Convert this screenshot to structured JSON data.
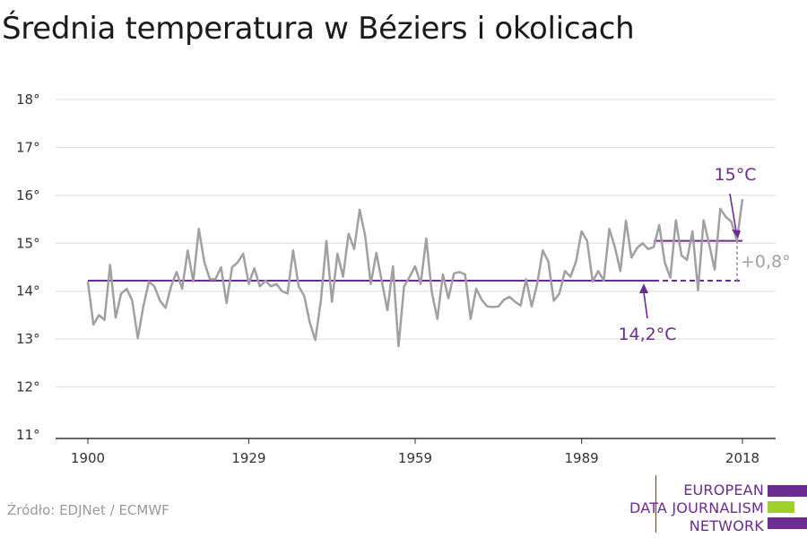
{
  "title": "Średnia temperatura w Béziers i okolicach",
  "source": "Źródło: EDJNet / ECMWF",
  "logo": {
    "lines": [
      "EUROPEAN",
      "DATA JOURNALISM",
      "NETWORK"
    ],
    "colors": [
      "#6a2c91",
      "#a0cf2d",
      "#6a2c91"
    ]
  },
  "colors": {
    "series": "#a0a0a0",
    "average": "#6a2c91",
    "grid": "#dcdcdc",
    "axis": "#333333"
  },
  "chart_data": {
    "type": "line",
    "title": "Średnia temperatura w Béziers i okolicach",
    "xlabel": "",
    "ylabel": "",
    "xlim": [
      1900,
      2018
    ],
    "ylim": [
      11,
      18
    ],
    "xticks": [
      "1900",
      "1929",
      "1959",
      "1989",
      "2018"
    ],
    "yticks": [
      "11°",
      "12°",
      "13°",
      "14°",
      "15°",
      "16°",
      "17°",
      "18°"
    ],
    "grid": true,
    "x": [
      1900,
      1901,
      1902,
      1903,
      1904,
      1905,
      1906,
      1907,
      1908,
      1909,
      1910,
      1911,
      1912,
      1913,
      1914,
      1915,
      1916,
      1917,
      1918,
      1919,
      1920,
      1921,
      1922,
      1923,
      1924,
      1925,
      1926,
      1927,
      1928,
      1929,
      1930,
      1931,
      1932,
      1933,
      1934,
      1935,
      1936,
      1937,
      1938,
      1939,
      1940,
      1941,
      1942,
      1943,
      1944,
      1945,
      1946,
      1947,
      1948,
      1949,
      1950,
      1951,
      1952,
      1953,
      1954,
      1955,
      1956,
      1957,
      1958,
      1959,
      1960,
      1961,
      1962,
      1963,
      1964,
      1965,
      1966,
      1967,
      1968,
      1969,
      1970,
      1971,
      1972,
      1973,
      1974,
      1975,
      1976,
      1977,
      1978,
      1979,
      1980,
      1981,
      1982,
      1983,
      1984,
      1985,
      1986,
      1987,
      1988,
      1989,
      1990,
      1991,
      1992,
      1993,
      1994,
      1995,
      1996,
      1997,
      1998,
      1999,
      2000,
      2001,
      2002,
      2003,
      2004,
      2005,
      2006,
      2007,
      2008,
      2009,
      2010,
      2011,
      2012,
      2013,
      2014,
      2015,
      2016,
      2017,
      2018
    ],
    "series": [
      {
        "values": [
          14.2,
          13.3,
          13.5,
          13.4,
          14.55,
          13.45,
          13.95,
          14.05,
          13.8,
          13.02,
          13.68,
          14.2,
          14.1,
          13.8,
          13.65,
          14.1,
          14.4,
          14.05,
          14.85,
          14.2,
          15.3,
          14.6,
          14.25,
          14.25,
          14.5,
          13.75,
          14.5,
          14.6,
          14.78,
          14.15,
          14.48,
          14.1,
          14.22,
          14.1,
          14.15,
          14.0,
          13.95,
          14.85,
          14.1,
          13.9,
          13.35,
          12.98,
          13.8,
          15.05,
          13.78,
          14.78,
          14.3,
          15.2,
          14.88,
          15.7,
          15.15,
          14.15,
          14.8,
          14.2,
          13.6,
          14.52,
          12.85,
          14.1,
          14.3,
          14.52,
          14.15,
          15.1,
          13.98,
          13.42,
          14.35,
          13.85,
          14.37,
          14.4,
          14.35,
          13.42,
          14.05,
          13.82,
          13.68,
          13.67,
          13.68,
          13.82,
          13.88,
          13.78,
          13.7,
          14.25,
          13.68,
          14.15,
          14.85,
          14.62,
          13.8,
          13.95,
          14.42,
          14.3,
          14.62,
          15.25,
          15.05,
          14.2,
          14.42,
          14.22,
          15.3,
          14.92,
          14.42,
          15.47,
          14.7,
          14.9,
          15.0,
          14.88,
          14.92,
          15.38,
          14.6,
          14.28,
          15.48,
          14.75,
          14.65,
          15.25,
          14.02,
          15.48,
          14.98,
          14.45,
          15.72,
          15.55,
          15.45,
          15.05,
          15.92
        ]
      }
    ],
    "reference_lines": [
      {
        "from": 1900,
        "to": 2002,
        "y": 14.22,
        "style": "solid"
      },
      {
        "from": 2002,
        "to": 2018,
        "y": 14.22,
        "style": "dashed"
      },
      {
        "from": 2002,
        "to": 2018,
        "y": 15.05,
        "style": "solid"
      }
    ],
    "annotations": {
      "recent_label": "15°C",
      "baseline_label": "14,2°C",
      "delta_label": "+0,8°"
    }
  }
}
